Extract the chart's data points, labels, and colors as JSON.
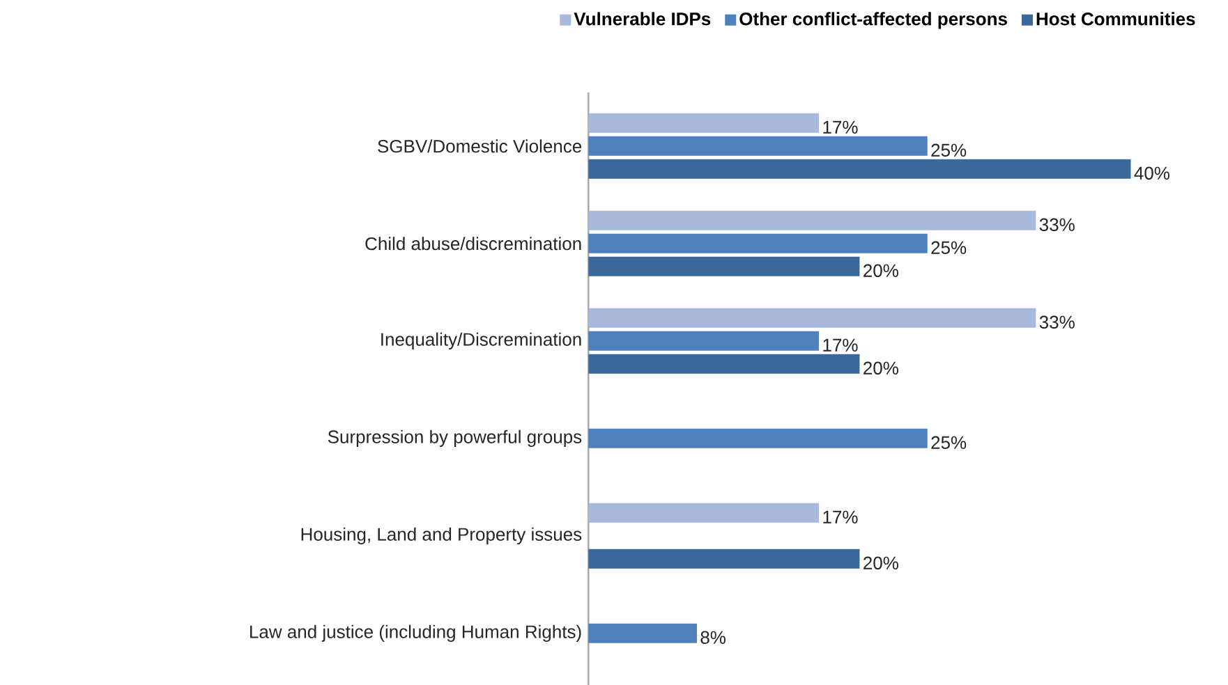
{
  "chart_data": {
    "type": "bar",
    "orientation": "horizontal",
    "categories": [
      "SGBV/Domestic Violence",
      "Child abuse/discremination",
      "Inequality/Discremination",
      "Surpression by powerful groups",
      "Housing, Land and Property issues",
      "Law and justice (including Human Rights)"
    ],
    "series": [
      {
        "name": "Vulnerable IDPs",
        "color": "#a9b9db",
        "values": [
          17,
          33,
          33,
          null,
          17,
          null
        ],
        "value_labels": [
          "17%",
          "33%",
          "33%",
          null,
          "17%",
          null
        ]
      },
      {
        "name": "Other conflict-affected persons",
        "color": "#4f81bd",
        "values": [
          25,
          25,
          17,
          25,
          null,
          8
        ],
        "value_labels": [
          "25%",
          "25%",
          "17%",
          "25%",
          null,
          "8%"
        ]
      },
      {
        "name": "Host Communities",
        "color": "#3c679b",
        "values": [
          40,
          20,
          20,
          null,
          20,
          null
        ],
        "value_labels": [
          "40%",
          "20%",
          "20%",
          null,
          "20%",
          null
        ]
      }
    ],
    "legend": "top",
    "tick_labels": "y"
  }
}
